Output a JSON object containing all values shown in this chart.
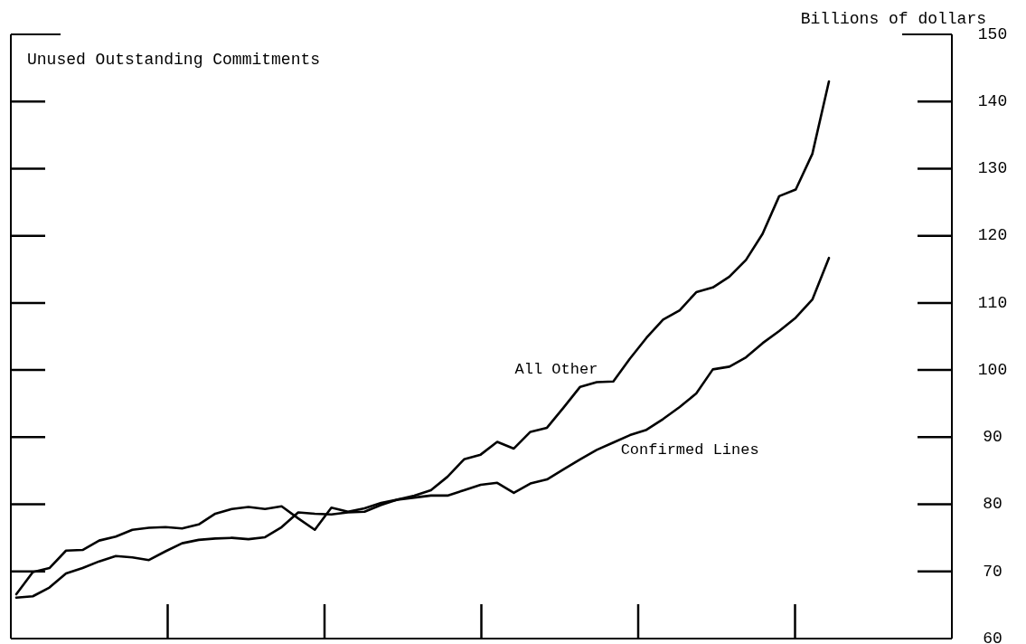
{
  "chart_data": {
    "type": "line",
    "title": "Unused Outstanding Commitments",
    "ylabel": "Billions of dollars",
    "categories": [
      null,
      null,
      null,
      null,
      null,
      null,
      null,
      null,
      null,
      null,
      null,
      null,
      null,
      null,
      null,
      null,
      null,
      null,
      null,
      null,
      null,
      null,
      null,
      null,
      null,
      null,
      null,
      null,
      null,
      null,
      null,
      null,
      null,
      null,
      null,
      null,
      null,
      null,
      null,
      null,
      null,
      null,
      null,
      null,
      null,
      null,
      null,
      null,
      null,
      null
    ],
    "ylim": [
      60,
      150
    ],
    "yticks": [
      60,
      70,
      80,
      90,
      100,
      110,
      120,
      130,
      140,
      150
    ],
    "marker": "none",
    "line_style": "solid",
    "series": [
      {
        "name": "All Other",
        "color": "#000000",
        "values": [
          66.6,
          69.9,
          70.5,
          73.1,
          73.2,
          74.6,
          75.2,
          76.2,
          76.5,
          76.6,
          76.4,
          77,
          78.6,
          79.3,
          79.6,
          79.3,
          79.7,
          77.9,
          76.2,
          79.5,
          78.9,
          79.4,
          80.2,
          80.7,
          81.3,
          82.1,
          84.1,
          86.7,
          87.4,
          89.3,
          88.3,
          90.8,
          91.4,
          94.4,
          97.5,
          98.2,
          98.3,
          101.7,
          104.8,
          107.5,
          108.9,
          111.6,
          112.3,
          113.9,
          116.4,
          120.3,
          125.9,
          126.9,
          132.2,
          143
        ]
      },
      {
        "name": "Confirmed Lines",
        "color": "#000000",
        "values": [
          66.1,
          66.3,
          67.6,
          69.7,
          70.5,
          71.5,
          72.3,
          72.1,
          71.7,
          73,
          74.2,
          74.7,
          74.9,
          75,
          74.8,
          75.1,
          76.6,
          78.8,
          78.6,
          78.5,
          78.8,
          78.9,
          79.9,
          80.7,
          81,
          81.3,
          81.3,
          82.1,
          82.9,
          83.2,
          81.7,
          83.1,
          83.7,
          85.2,
          86.7,
          88.1,
          89.2,
          90.3,
          91.1,
          92.7,
          94.5,
          96.5,
          100.1,
          100.5,
          101.9,
          104,
          105.8,
          107.8,
          110.5,
          116.7
        ]
      }
    ]
  }
}
